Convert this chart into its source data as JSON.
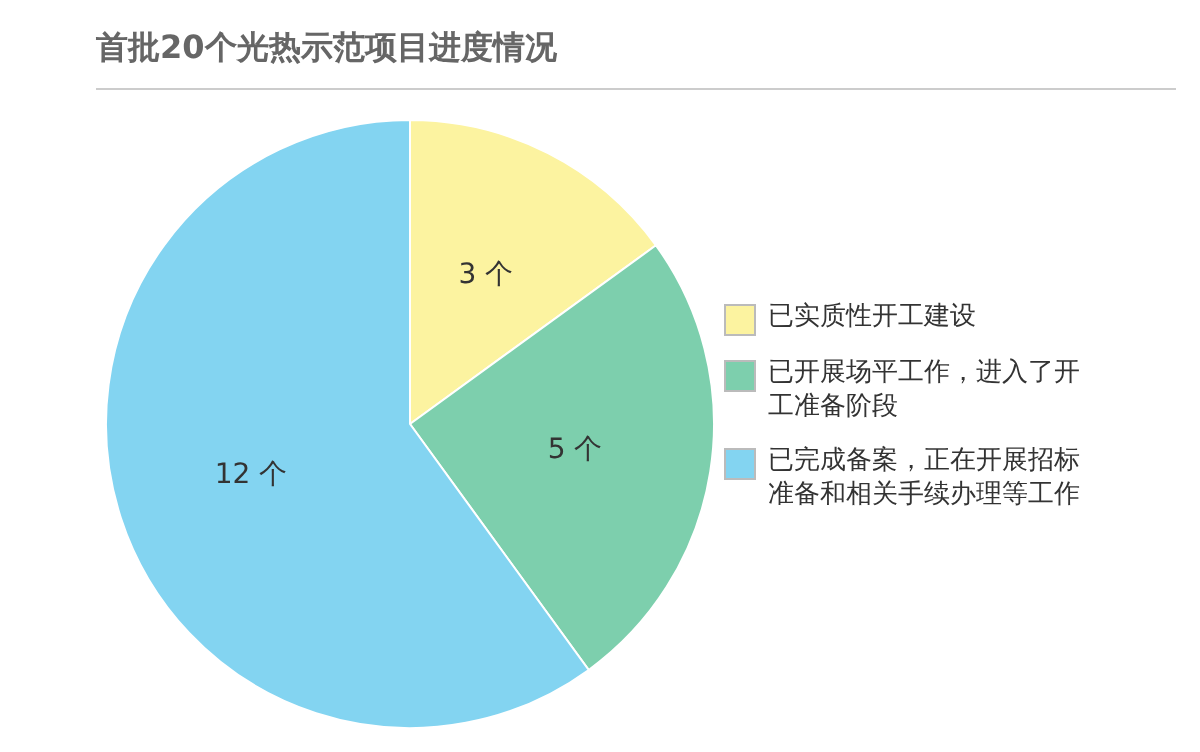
{
  "chart_data": {
    "type": "pie",
    "title": "首批20个光热示范项目进度情况",
    "categories": [
      "已实质性开工建设",
      "已开展场平工作，进入了开工准备阶段",
      "已完成备案，正在开展招标准备和相关手续办理等工作"
    ],
    "values": [
      3,
      5,
      12
    ],
    "colors": [
      "#fcf3a0",
      "#7dcfad",
      "#83d4f1"
    ],
    "value_labels": [
      "3 个",
      "5 个",
      "12 个"
    ],
    "legend": "right"
  }
}
